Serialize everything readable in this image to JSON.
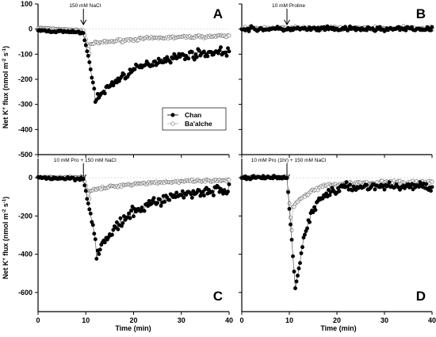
{
  "chart_data": {
    "type": "scatter",
    "layout": "2x2 panel grid",
    "shared_y_label_html": "Net K<sup>+</sup> flux (nmol m<sup>-2</sup> s<sup>-1</sup>)",
    "y_label_text": "Net K+ flux (nmol m-2 s-1)",
    "x_label": "Time (min)",
    "legend": {
      "placement": "inside panel A, lower left",
      "entries": [
        {
          "name": "Chan",
          "marker": "filled circle",
          "color": "#000000"
        },
        {
          "name": "Ba'alche",
          "marker": "open circle",
          "color": "#999999"
        }
      ]
    },
    "panels": [
      {
        "id": "A",
        "annotation": "150 mM NaCl",
        "arrow_at_min": 9.5,
        "xlim": [
          0,
          40
        ],
        "ylim": [
          -500,
          100
        ],
        "y_ticks": [
          100,
          0,
          -100,
          -200,
          -300,
          -400,
          -500
        ],
        "x_ticks": [],
        "series": {
          "Chan": {
            "pre": [
              -5,
              -15
            ],
            "drop_to": -240,
            "min_at": 11.8,
            "min_value": -290,
            "end_value": -80,
            "tau_min": 9,
            "noise": 18
          },
          "Ba'alche": {
            "pre": [
              5,
              -5
            ],
            "drop_to": -100,
            "min_at": 10.8,
            "min_value": -60,
            "end_value": -25,
            "tau_min": 12,
            "noise": 6
          }
        }
      },
      {
        "id": "B",
        "annotation": "10 mM Proline",
        "arrow_at_min": 9.5,
        "xlim": [
          0,
          40
        ],
        "ylim": [
          -500,
          100
        ],
        "y_ticks": [],
        "x_ticks": [],
        "series": {
          "Chan": {
            "pre": [
              0,
              0
            ],
            "flat": true,
            "level": 0,
            "noise": 10
          },
          "Ba'alche": {
            "pre": [
              3,
              3
            ],
            "flat": true,
            "level": 3,
            "noise": 8
          }
        }
      },
      {
        "id": "C",
        "annotation": "10 mM Pro + 150 mM NaCl",
        "arrow_at_min": 9.5,
        "xlim": [
          0,
          40
        ],
        "ylim": [
          -700,
          100
        ],
        "y_ticks": [
          0,
          -200,
          -400,
          -600
        ],
        "x_ticks": [
          0,
          10,
          20,
          30,
          40
        ],
        "series": {
          "Chan": {
            "pre": [
              0,
              -5
            ],
            "drop_to": -330,
            "min_at": 12.1,
            "min_value": -410,
            "end_value": -50,
            "tau_min": 8,
            "noise": 30
          },
          "Ba'alche": {
            "pre": [
              3,
              3
            ],
            "drop_to": -130,
            "min_at": 11,
            "min_value": -70,
            "end_value": -15,
            "tau_min": 8,
            "noise": 8
          }
        }
      },
      {
        "id": "D",
        "annotation": "10 mM Pro (1hr) + 150 mM NaCl",
        "arrow_at_min": 9.5,
        "xlim": [
          0,
          40
        ],
        "ylim": [
          -700,
          100
        ],
        "y_ticks": [],
        "x_ticks": [
          0,
          10,
          20,
          30,
          40
        ],
        "series": {
          "Chan": {
            "pre": [
              0,
              0
            ],
            "drop_to": -590,
            "min_at": 11.3,
            "min_value": -600,
            "end_value": -45,
            "tau_min": 2.5,
            "noise": 25
          },
          "Ba'alche": {
            "pre": [
              3,
              3
            ],
            "drop_to": -330,
            "min_at": 10.7,
            "min_value": -160,
            "end_value": -25,
            "tau_min": 3.5,
            "noise": 12
          }
        }
      }
    ]
  }
}
